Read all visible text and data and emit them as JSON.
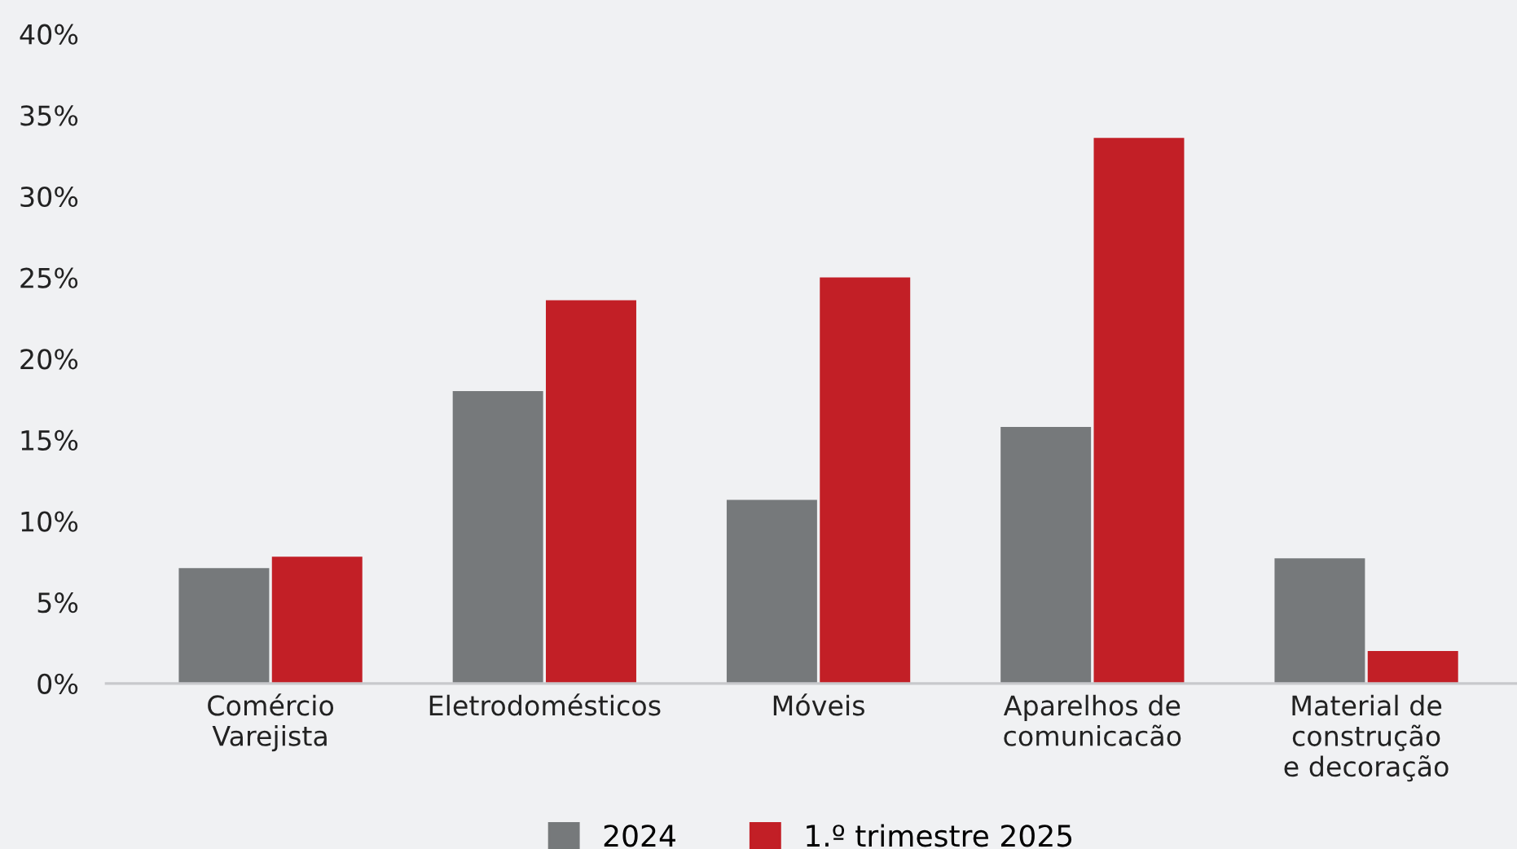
{
  "chart_data": {
    "type": "bar",
    "categories": [
      "Comércio\nVarejista",
      "Eletrodomésticos",
      "Móveis",
      "Aparelhos de\ncomunicacão",
      "Material de\nconstrução\ne decoração"
    ],
    "series": [
      {
        "name": "2024",
        "color": "#76797b",
        "values": [
          7.1,
          18.0,
          11.3,
          15.8,
          7.7
        ]
      },
      {
        "name": "1.º trimestre 2025",
        "color": "#c21f26",
        "values": [
          7.8,
          23.6,
          25.0,
          33.6,
          2.0
        ]
      }
    ],
    "ylim": [
      0,
      40
    ],
    "yticks": [
      {
        "value": 0,
        "label": "0%"
      },
      {
        "value": 5,
        "label": "5%"
      },
      {
        "value": 10,
        "label": "10%"
      },
      {
        "value": 15,
        "label": "15%"
      },
      {
        "value": 20,
        "label": "20%"
      },
      {
        "value": 25,
        "label": "25%"
      },
      {
        "value": 30,
        "label": "30%"
      },
      {
        "value": 35,
        "label": "35%"
      },
      {
        "value": 40,
        "label": "40%"
      }
    ],
    "grid": false,
    "legend": "bottom"
  }
}
